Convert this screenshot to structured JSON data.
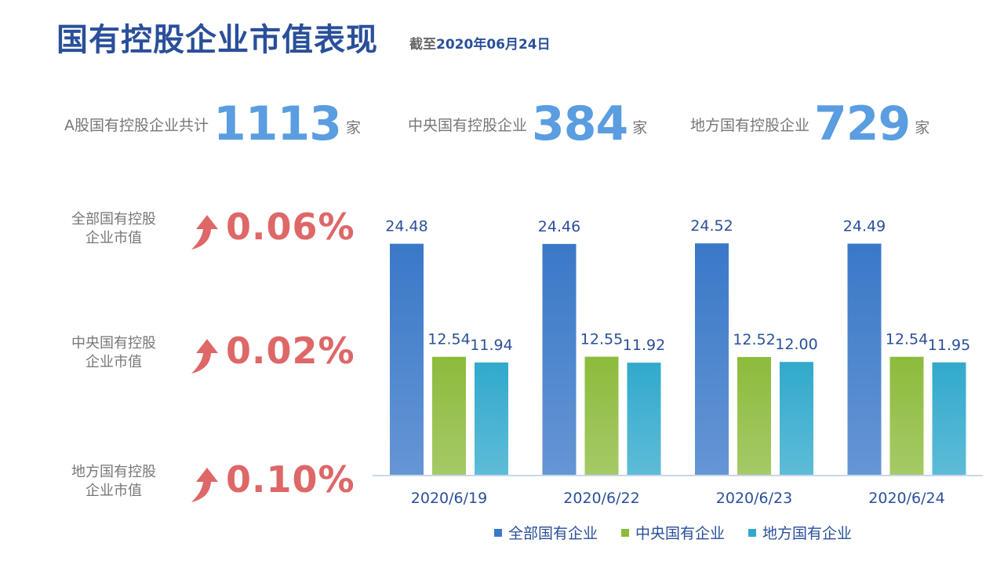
{
  "header": {
    "title": "国有控股企业市值表现",
    "subtitle_prefix": "截至",
    "subtitle_date": "2020年06月24日"
  },
  "stats": [
    {
      "label": "A股国有控股企业共计",
      "value": "1113",
      "unit": "家"
    },
    {
      "label": "中央国有控股企业",
      "value": "384",
      "unit": "家"
    },
    {
      "label": "地方国有控股企业",
      "value": "729",
      "unit": "家"
    }
  ],
  "changes": [
    {
      "label_line1": "全部国有控股",
      "label_line2": "企业市值",
      "value": "0.06%",
      "icon": "up-arrow-icon"
    },
    {
      "label_line1": "中央国有控股",
      "label_line2": "企业市值",
      "value": "0.02%",
      "icon": "up-arrow-icon"
    },
    {
      "label_line1": "地方国有控股",
      "label_line2": "企业市值",
      "value": "0.10%",
      "icon": "up-arrow-icon"
    }
  ],
  "colors": {
    "title": "#2a4f9a",
    "accent_blue": "#5a9de0",
    "up_red": "#de6768"
  },
  "chart_data": {
    "type": "bar",
    "categories": [
      "2020/6/19",
      "2020/6/22",
      "2020/6/23",
      "2020/6/24"
    ],
    "series": [
      {
        "name": "全部国有企业",
        "values": [
          24.48,
          24.46,
          24.52,
          24.49
        ],
        "labels": [
          "24.48",
          "24.46",
          "24.52",
          "24.49"
        ],
        "color": "#3a78c8"
      },
      {
        "name": "中央国有企业",
        "values": [
          12.54,
          12.55,
          12.52,
          12.54
        ],
        "labels": [
          "12.54",
          "12.55",
          "12.52",
          "12.54"
        ],
        "color": "#8cbb3c"
      },
      {
        "name": "地方国有企业",
        "values": [
          11.94,
          11.92,
          12.0,
          11.95
        ],
        "labels": [
          "11.94",
          "11.92",
          "12.00",
          "11.95"
        ],
        "color": "#31a9cc"
      }
    ],
    "ylim": [
      0,
      30
    ],
    "legend": "bottom",
    "grid": false
  }
}
